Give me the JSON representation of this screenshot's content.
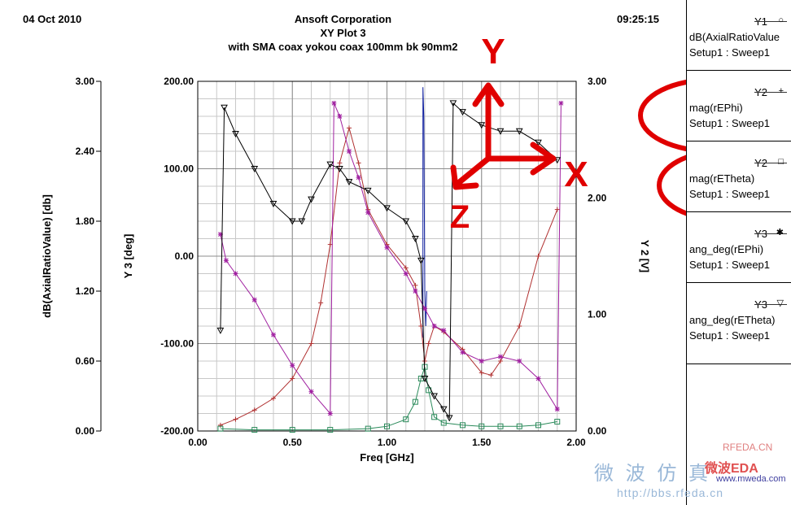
{
  "header": {
    "date": "04 Oct 2010",
    "company": "Ansoft Corporation",
    "plot_title": "XY Plot 3",
    "subtitle": "with SMA coax yokou coax 100mm bk 90mm2",
    "time": "09:25:15"
  },
  "legend": [
    {
      "axis": "Y1",
      "marker": "○",
      "expr": "dB(AxialRatioValue",
      "setup": "Setup1 : Sweep1",
      "color": "#4040c0"
    },
    {
      "axis": "Y2",
      "marker": "+",
      "expr": "mag(rEPhi)",
      "setup": "Setup1 : Sweep1",
      "color": "#b03030"
    },
    {
      "axis": "Y2",
      "marker": "□",
      "expr": "mag(rETheta)",
      "setup": "Setup1 : Sweep1",
      "color": "#2a8a5a"
    },
    {
      "axis": "Y3",
      "marker": "✱",
      "expr": "ang_deg(rEPhi)",
      "setup": "Setup1 : Sweep1",
      "color": "#a020a0"
    },
    {
      "axis": "Y3",
      "marker": "▽",
      "expr": "ang_deg(rETheta)",
      "setup": "Setup1 : Sweep1",
      "color": "#000000"
    }
  ],
  "annotations": {
    "y": "Y",
    "x": "X",
    "z": "Z",
    "color": "#e00000"
  },
  "watermark": {
    "site": "RFEDA.CN",
    "url1": "www.mweda.com",
    "url2": "http://bbs.rfeda.cn",
    "cn_text": "微 波 仿 真",
    "cn_brand": "微波EDA"
  },
  "chart_data": {
    "type": "line",
    "xlabel": "Freq [GHz]",
    "x_ticks": [
      "0.00",
      "0.50",
      "1.00",
      "1.50",
      "2.00"
    ],
    "xlim": [
      0,
      2
    ],
    "y1": {
      "label": "dB(AxialRatioValue) [db]",
      "ticks": [
        "0.00",
        "0.60",
        "1.20",
        "1.80",
        "2.40",
        "3.00"
      ],
      "lim": [
        0,
        3
      ]
    },
    "y3": {
      "label": "Y 3  [deg]",
      "ticks": [
        "-200.00",
        "-100.00",
        "0.00",
        "100.00",
        "200.00"
      ],
      "lim": [
        -200,
        200
      ]
    },
    "y2": {
      "label": "Y 2  [V]",
      "ticks": [
        "0.00",
        "1.00",
        "2.00",
        "3.00"
      ],
      "lim": [
        0,
        3
      ]
    },
    "grid": true,
    "series": [
      {
        "name": "dB(AxialRatioValue",
        "axis": "y1",
        "color": "#1020a0",
        "x": [
          1.19,
          1.19,
          1.195,
          1.2,
          1.205,
          1.21
        ],
        "y": [
          0.8,
          2.95,
          2.7,
          1.2,
          0.9,
          1.2
        ]
      },
      {
        "name": "mag(rEPhi)",
        "axis": "y2",
        "color": "#b03030",
        "marker": "+",
        "x": [
          0.12,
          0.2,
          0.3,
          0.4,
          0.5,
          0.6,
          0.65,
          0.7,
          0.75,
          0.8,
          0.85,
          0.9,
          1.0,
          1.1,
          1.15,
          1.18,
          1.2,
          1.22,
          1.25,
          1.3,
          1.4,
          1.5,
          1.55,
          1.6,
          1.7,
          1.8,
          1.9
        ],
        "y": [
          0.05,
          0.1,
          0.18,
          0.28,
          0.45,
          0.75,
          1.1,
          1.6,
          2.3,
          2.6,
          2.3,
          1.9,
          1.6,
          1.4,
          1.25,
          0.9,
          0.6,
          0.75,
          0.9,
          0.85,
          0.7,
          0.5,
          0.48,
          0.6,
          0.9,
          1.5,
          1.9
        ]
      },
      {
        "name": "mag(rETheta)",
        "axis": "y2",
        "color": "#2a8a5a",
        "marker": "square",
        "x": [
          0.12,
          0.3,
          0.5,
          0.7,
          0.9,
          1.0,
          1.1,
          1.15,
          1.18,
          1.2,
          1.22,
          1.25,
          1.3,
          1.4,
          1.5,
          1.6,
          1.7,
          1.8,
          1.9
        ],
        "y": [
          0.02,
          0.01,
          0.01,
          0.01,
          0.02,
          0.04,
          0.1,
          0.25,
          0.45,
          0.55,
          0.35,
          0.12,
          0.07,
          0.05,
          0.04,
          0.04,
          0.04,
          0.05,
          0.08
        ]
      },
      {
        "name": "ang_deg(rEPhi)",
        "axis": "y3",
        "color": "#a020a0",
        "marker": "star",
        "x": [
          0.12,
          0.15,
          0.2,
          0.3,
          0.4,
          0.5,
          0.6,
          0.7,
          0.72,
          0.75,
          0.8,
          0.85,
          0.9,
          1.0,
          1.1,
          1.15,
          1.2,
          1.25,
          1.3,
          1.4,
          1.5,
          1.6,
          1.7,
          1.8,
          1.9,
          1.92
        ],
        "y": [
          25,
          -5,
          -20,
          -50,
          -90,
          -125,
          -155,
          -180,
          175,
          160,
          120,
          90,
          50,
          10,
          -20,
          -40,
          -60,
          -80,
          -85,
          -110,
          -120,
          -115,
          -120,
          -140,
          -175,
          175
        ]
      },
      {
        "name": "ang_deg(rETheta)",
        "axis": "y3",
        "color": "#000000",
        "marker": "triangle",
        "x": [
          0.12,
          0.14,
          0.2,
          0.3,
          0.4,
          0.5,
          0.55,
          0.6,
          0.7,
          0.75,
          0.8,
          0.9,
          1.0,
          1.1,
          1.15,
          1.18,
          1.2,
          1.25,
          1.3,
          1.33,
          1.35,
          1.4,
          1.5,
          1.6,
          1.7,
          1.8,
          1.9
        ],
        "y": [
          -85,
          170,
          140,
          100,
          60,
          40,
          40,
          65,
          105,
          100,
          85,
          75,
          55,
          40,
          20,
          -5,
          -140,
          -160,
          -175,
          -185,
          175,
          165,
          150,
          143,
          143,
          130,
          110
        ]
      }
    ]
  }
}
